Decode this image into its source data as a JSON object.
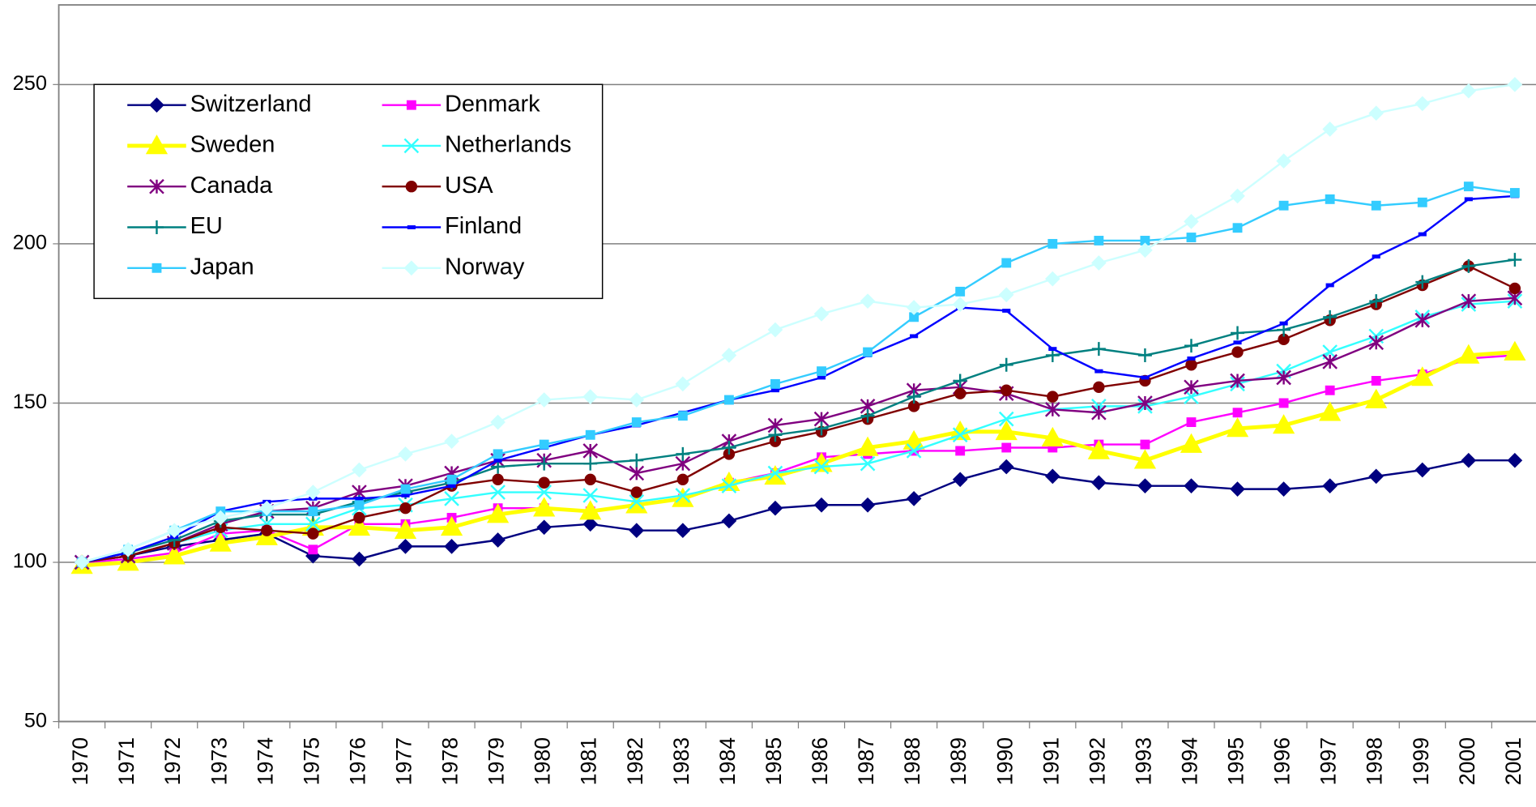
{
  "chart_data": {
    "type": "line",
    "categories": [
      "1970",
      "1971",
      "1972",
      "1973",
      "1974",
      "1975",
      "1976",
      "1977",
      "1978",
      "1979",
      "1980",
      "1981",
      "1982",
      "1983",
      "1984",
      "1985",
      "1986",
      "1987",
      "1988",
      "1989",
      "1990",
      "1991",
      "1992",
      "1993",
      "1994",
      "1995",
      "1996",
      "1997",
      "1998",
      "1999",
      "2000",
      "2001"
    ],
    "ylim": [
      50,
      275
    ],
    "yticks": [
      50,
      100,
      150,
      200,
      250
    ],
    "grid": true,
    "legend": "upper left",
    "series": [
      {
        "name": "Switzerland",
        "color": "#000080",
        "marker": "diamond",
        "values": [
          100,
          102,
          105,
          107,
          109,
          102,
          101,
          105,
          105,
          107,
          111,
          112,
          110,
          110,
          113,
          117,
          118,
          118,
          120,
          126,
          130,
          127,
          125,
          124,
          124,
          123,
          123,
          124,
          127,
          129,
          132,
          132
        ]
      },
      {
        "name": "Denmark",
        "color": "#ff00ff",
        "marker": "square",
        "values": [
          100,
          101,
          103,
          109,
          110,
          104,
          112,
          112,
          114,
          117,
          117,
          116,
          118,
          120,
          125,
          128,
          133,
          134,
          135,
          135,
          136,
          136,
          137,
          137,
          144,
          147,
          150,
          154,
          157,
          159,
          164,
          165
        ]
      },
      {
        "name": "Sweden",
        "color": "#ffff00",
        "marker": "triangle",
        "values": [
          99,
          100,
          102,
          106,
          108,
          111,
          111,
          110,
          111,
          115,
          117,
          116,
          118,
          120,
          125,
          127,
          131,
          136,
          138,
          141,
          141,
          139,
          135,
          132,
          137,
          142,
          143,
          147,
          151,
          158,
          165,
          166
        ]
      },
      {
        "name": "Netherlands",
        "color": "#33ffff",
        "marker": "x",
        "values": [
          100,
          102,
          106,
          110,
          112,
          112,
          117,
          118,
          120,
          122,
          122,
          121,
          119,
          121,
          124,
          128,
          130,
          131,
          135,
          140,
          145,
          148,
          149,
          149,
          152,
          156,
          160,
          166,
          171,
          177,
          181,
          182
        ]
      },
      {
        "name": "Canada",
        "color": "#800080",
        "marker": "star",
        "values": [
          100,
          102,
          106,
          112,
          116,
          117,
          122,
          124,
          128,
          132,
          132,
          135,
          128,
          131,
          138,
          143,
          145,
          149,
          154,
          155,
          153,
          148,
          147,
          150,
          155,
          157,
          158,
          163,
          169,
          176,
          182,
          183
        ]
      },
      {
        "name": "USA",
        "color": "#800000",
        "marker": "circle",
        "values": [
          100,
          102,
          106,
          111,
          110,
          109,
          114,
          117,
          124,
          126,
          125,
          126,
          122,
          126,
          134,
          138,
          141,
          145,
          149,
          153,
          154,
          152,
          155,
          157,
          162,
          166,
          170,
          176,
          181,
          187,
          193,
          186
        ]
      },
      {
        "name": "EU",
        "color": "#008080",
        "marker": "plus",
        "values": [
          100,
          103,
          107,
          113,
          115,
          115,
          119,
          122,
          125,
          130,
          131,
          131,
          132,
          134,
          136,
          140,
          142,
          146,
          152,
          157,
          162,
          165,
          167,
          165,
          168,
          172,
          173,
          177,
          182,
          188,
          193,
          195
        ]
      },
      {
        "name": "Finland",
        "color": "#0000ff",
        "marker": "dash",
        "values": [
          100,
          103,
          108,
          116,
          119,
          120,
          120,
          121,
          124,
          132,
          136,
          140,
          143,
          147,
          151,
          154,
          158,
          165,
          171,
          180,
          179,
          167,
          160,
          158,
          164,
          169,
          175,
          187,
          196,
          203,
          214,
          215
        ]
      },
      {
        "name": "Japan",
        "color": "#33ccff",
        "marker": "square",
        "values": [
          100,
          104,
          110,
          116,
          116,
          116,
          118,
          123,
          126,
          134,
          137,
          140,
          144,
          146,
          151,
          156,
          160,
          166,
          177,
          185,
          194,
          200,
          201,
          201,
          202,
          205,
          212,
          214,
          212,
          213,
          218,
          216
        ]
      },
      {
        "name": "Norway",
        "color": "#ccffff",
        "marker": "diamond",
        "values": [
          100,
          104,
          110,
          114,
          117,
          122,
          129,
          134,
          138,
          144,
          151,
          152,
          151,
          156,
          165,
          173,
          178,
          182,
          180,
          181,
          184,
          189,
          194,
          198,
          207,
          215,
          226,
          236,
          241,
          244,
          248,
          250
        ]
      }
    ]
  }
}
